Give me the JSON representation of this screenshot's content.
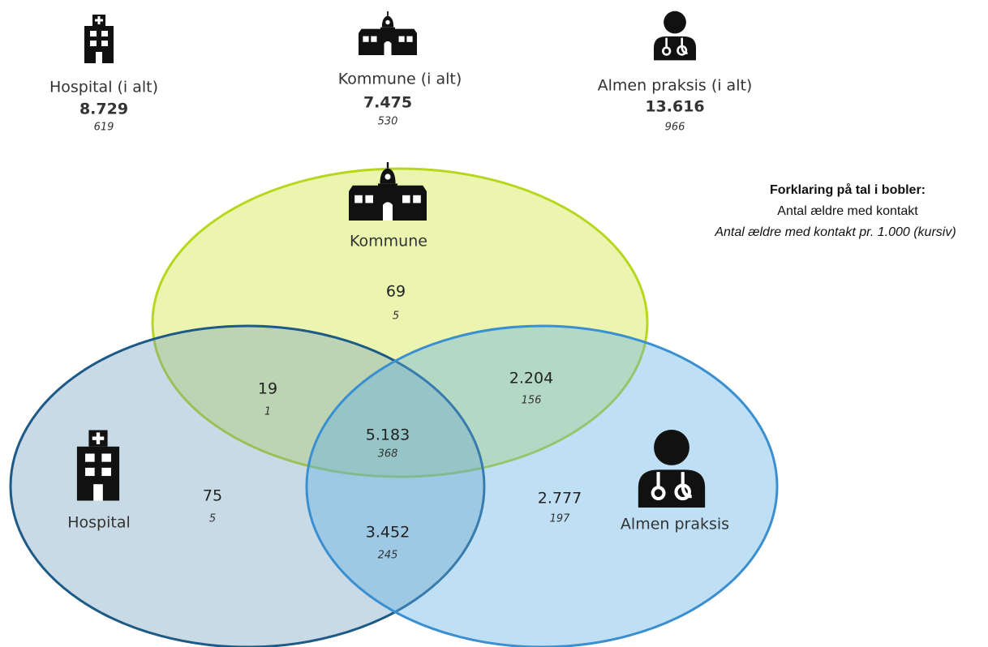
{
  "totals": [
    {
      "label": "Hospital (i alt)",
      "count": "8.729",
      "per1000": "619"
    },
    {
      "label": "Kommune (i alt)",
      "count": "7.475",
      "per1000": "530"
    },
    {
      "label": "Almen praksis (i alt)",
      "count": "13.616",
      "per1000": "966"
    }
  ],
  "legend": {
    "title": "Forklaring på tal i bobler:",
    "line1": "Antal ældre med kontakt",
    "line2": "Antal ældre med kontakt pr. 1.000 (kursiv)"
  },
  "sets": [
    {
      "label": "Kommune"
    },
    {
      "label": "Hospital"
    },
    {
      "label": "Almen praksis"
    }
  ],
  "regions": [
    {
      "count": "69",
      "per1000": "5"
    },
    {
      "count": "19",
      "per1000": "1"
    },
    {
      "count": "2.204",
      "per1000": "156"
    },
    {
      "count": "5.183",
      "per1000": "368"
    },
    {
      "count": "75",
      "per1000": "5"
    },
    {
      "count": "3.452",
      "per1000": "245"
    },
    {
      "count": "2.777",
      "per1000": "197"
    }
  ]
}
